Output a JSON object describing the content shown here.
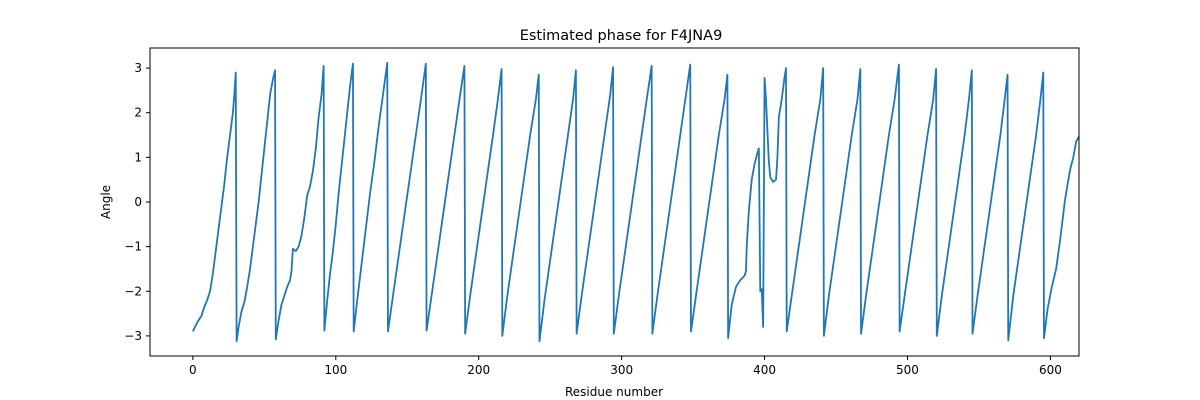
{
  "chart_data": {
    "type": "line",
    "title": "Estimated phase for F4JNA9",
    "xlabel": "Residue number",
    "ylabel": "Angle",
    "xlim": [
      -30,
      620
    ],
    "ylim": [
      -3.45,
      3.45
    ],
    "xticks": [
      0,
      100,
      200,
      300,
      400,
      500,
      600
    ],
    "yticks": [
      -3,
      -2,
      -1,
      0,
      1,
      2,
      3
    ],
    "grid": false,
    "legend": "none",
    "series": [
      {
        "color": "#1f77b4",
        "points": [
          [
            0,
            -2.9
          ],
          [
            3,
            -2.7
          ],
          [
            6,
            -2.55
          ],
          [
            8,
            -2.35
          ],
          [
            10,
            -2.2
          ],
          [
            12,
            -2.0
          ],
          [
            14,
            -1.6
          ],
          [
            16,
            -1.1
          ],
          [
            18,
            -0.6
          ],
          [
            20,
            -0.1
          ],
          [
            22,
            0.4
          ],
          [
            24,
            1.0
          ],
          [
            26,
            1.5
          ],
          [
            28,
            2.0
          ],
          [
            29,
            2.4
          ],
          [
            30,
            2.9
          ],
          [
            30.6,
            -3.12
          ],
          [
            32,
            -2.8
          ],
          [
            34,
            -2.45
          ],
          [
            36,
            -2.25
          ],
          [
            38,
            -1.9
          ],
          [
            40,
            -1.5
          ],
          [
            42,
            -1.0
          ],
          [
            44,
            -0.5
          ],
          [
            46,
            0.0
          ],
          [
            48,
            0.6
          ],
          [
            50,
            1.2
          ],
          [
            52,
            1.8
          ],
          [
            54,
            2.4
          ],
          [
            56,
            2.75
          ],
          [
            57.5,
            2.95
          ],
          [
            58,
            -3.08
          ],
          [
            60,
            -2.65
          ],
          [
            62,
            -2.3
          ],
          [
            64,
            -2.1
          ],
          [
            66,
            -1.9
          ],
          [
            68,
            -1.75
          ],
          [
            69,
            -1.55
          ],
          [
            70,
            -1.05
          ],
          [
            72,
            -1.1
          ],
          [
            74,
            -1.0
          ],
          [
            76,
            -0.75
          ],
          [
            78,
            -0.35
          ],
          [
            80,
            0.15
          ],
          [
            82,
            0.35
          ],
          [
            84,
            0.7
          ],
          [
            86,
            1.2
          ],
          [
            88,
            1.9
          ],
          [
            90,
            2.4
          ],
          [
            91.5,
            3.05
          ],
          [
            92,
            -2.88
          ],
          [
            94,
            -2.2
          ],
          [
            96,
            -1.6
          ],
          [
            98,
            -1.1
          ],
          [
            100,
            -0.5
          ],
          [
            102,
            0.2
          ],
          [
            104,
            0.8
          ],
          [
            106,
            1.4
          ],
          [
            108,
            2.0
          ],
          [
            110,
            2.6
          ],
          [
            112,
            3.1
          ],
          [
            112.5,
            -2.9
          ],
          [
            115,
            -2.2
          ],
          [
            118,
            -1.4
          ],
          [
            121,
            -0.6
          ],
          [
            124,
            0.2
          ],
          [
            127,
            0.9
          ],
          [
            130,
            1.7
          ],
          [
            133,
            2.4
          ],
          [
            136,
            3.12
          ],
          [
            136.5,
            -2.9
          ],
          [
            140,
            -2.1
          ],
          [
            144,
            -1.2
          ],
          [
            148,
            -0.3
          ],
          [
            152,
            0.6
          ],
          [
            156,
            1.5
          ],
          [
            160,
            2.4
          ],
          [
            163,
            3.1
          ],
          [
            163.5,
            -2.88
          ],
          [
            167,
            -2.1
          ],
          [
            171,
            -1.2
          ],
          [
            175,
            -0.3
          ],
          [
            179,
            0.6
          ],
          [
            183,
            1.5
          ],
          [
            187,
            2.4
          ],
          [
            190,
            3.05
          ],
          [
            190.5,
            -2.95
          ],
          [
            194,
            -2.1
          ],
          [
            198,
            -1.2
          ],
          [
            202,
            -0.3
          ],
          [
            206,
            0.6
          ],
          [
            210,
            1.5
          ],
          [
            213,
            2.2
          ],
          [
            216,
            2.98
          ],
          [
            216.5,
            -3.0
          ],
          [
            220,
            -2.1
          ],
          [
            224,
            -1.2
          ],
          [
            228,
            -0.3
          ],
          [
            232,
            0.6
          ],
          [
            236,
            1.5
          ],
          [
            240,
            2.3
          ],
          [
            242,
            2.85
          ],
          [
            242.5,
            -3.12
          ],
          [
            246,
            -2.2
          ],
          [
            250,
            -1.3
          ],
          [
            254,
            -0.4
          ],
          [
            258,
            0.5
          ],
          [
            262,
            1.4
          ],
          [
            266,
            2.3
          ],
          [
            268,
            2.95
          ],
          [
            268.5,
            -2.95
          ],
          [
            272,
            -2.1
          ],
          [
            276,
            -1.2
          ],
          [
            280,
            -0.3
          ],
          [
            284,
            0.6
          ],
          [
            288,
            1.5
          ],
          [
            292,
            2.4
          ],
          [
            294,
            3.02
          ],
          [
            294.5,
            -2.95
          ],
          [
            298,
            -2.1
          ],
          [
            302,
            -1.2
          ],
          [
            306,
            -0.3
          ],
          [
            310,
            0.6
          ],
          [
            314,
            1.5
          ],
          [
            318,
            2.4
          ],
          [
            321,
            3.05
          ],
          [
            321.5,
            -2.95
          ],
          [
            325,
            -2.1
          ],
          [
            329,
            -1.2
          ],
          [
            333,
            -0.3
          ],
          [
            337,
            0.6
          ],
          [
            341,
            1.5
          ],
          [
            345,
            2.4
          ],
          [
            348,
            3.08
          ],
          [
            348.5,
            -2.9
          ],
          [
            352,
            -2.1
          ],
          [
            356,
            -1.2
          ],
          [
            360,
            -0.3
          ],
          [
            364,
            0.6
          ],
          [
            368,
            1.5
          ],
          [
            372,
            2.3
          ],
          [
            374,
            2.85
          ],
          [
            374.5,
            -3.05
          ],
          [
            377,
            -2.3
          ],
          [
            380,
            -1.9
          ],
          [
            383,
            -1.75
          ],
          [
            386,
            -1.65
          ],
          [
            387,
            -1.55
          ],
          [
            387.5,
            -1.0
          ],
          [
            389,
            -0.2
          ],
          [
            391,
            0.5
          ],
          [
            393,
            0.85
          ],
          [
            395,
            1.1
          ],
          [
            396,
            1.2
          ],
          [
            397,
            -2.0
          ],
          [
            398,
            -1.95
          ],
          [
            399,
            -2.8
          ],
          [
            400,
            2.78
          ],
          [
            401,
            2.3
          ],
          [
            402,
            1.6
          ],
          [
            403,
            0.9
          ],
          [
            404,
            0.55
          ],
          [
            406,
            0.45
          ],
          [
            408,
            0.5
          ],
          [
            409,
            1.0
          ],
          [
            410,
            1.9
          ],
          [
            412,
            2.3
          ],
          [
            414,
            2.8
          ],
          [
            415,
            3.0
          ],
          [
            415.5,
            -2.9
          ],
          [
            419,
            -2.1
          ],
          [
            423,
            -1.2
          ],
          [
            427,
            -0.3
          ],
          [
            431,
            0.6
          ],
          [
            435,
            1.5
          ],
          [
            439,
            2.3
          ],
          [
            441,
            3.0
          ],
          [
            441.5,
            -3.0
          ],
          [
            445,
            -2.1
          ],
          [
            449,
            -1.2
          ],
          [
            453,
            -0.3
          ],
          [
            457,
            0.6
          ],
          [
            461,
            1.5
          ],
          [
            465,
            2.3
          ],
          [
            467,
            2.98
          ],
          [
            467.5,
            -2.95
          ],
          [
            471,
            -2.1
          ],
          [
            475,
            -1.2
          ],
          [
            479,
            -0.3
          ],
          [
            483,
            0.6
          ],
          [
            487,
            1.5
          ],
          [
            491,
            2.3
          ],
          [
            494,
            3.08
          ],
          [
            494.5,
            -2.9
          ],
          [
            498,
            -2.1
          ],
          [
            502,
            -1.2
          ],
          [
            506,
            -0.3
          ],
          [
            510,
            0.6
          ],
          [
            514,
            1.5
          ],
          [
            518,
            2.3
          ],
          [
            520,
            2.98
          ],
          [
            520.5,
            -3.0
          ],
          [
            524,
            -2.1
          ],
          [
            528,
            -1.2
          ],
          [
            532,
            -0.3
          ],
          [
            536,
            0.6
          ],
          [
            540,
            1.5
          ],
          [
            543,
            2.3
          ],
          [
            545,
            2.95
          ],
          [
            545.5,
            -2.95
          ],
          [
            549,
            -2.1
          ],
          [
            553,
            -1.2
          ],
          [
            557,
            -0.3
          ],
          [
            561,
            0.6
          ],
          [
            565,
            1.5
          ],
          [
            568,
            2.3
          ],
          [
            570,
            2.85
          ],
          [
            570.5,
            -3.1
          ],
          [
            574,
            -2.1
          ],
          [
            578,
            -1.2
          ],
          [
            582,
            -0.3
          ],
          [
            586,
            0.6
          ],
          [
            590,
            1.5
          ],
          [
            593,
            2.3
          ],
          [
            595,
            2.9
          ],
          [
            595.5,
            -3.05
          ],
          [
            598,
            -2.4
          ],
          [
            601,
            -1.9
          ],
          [
            604,
            -1.5
          ],
          [
            607,
            -0.8
          ],
          [
            610,
            0.0
          ],
          [
            612,
            0.4
          ],
          [
            614,
            0.75
          ],
          [
            616,
            1.0
          ],
          [
            618,
            1.35
          ],
          [
            620,
            1.47
          ]
        ]
      }
    ]
  }
}
